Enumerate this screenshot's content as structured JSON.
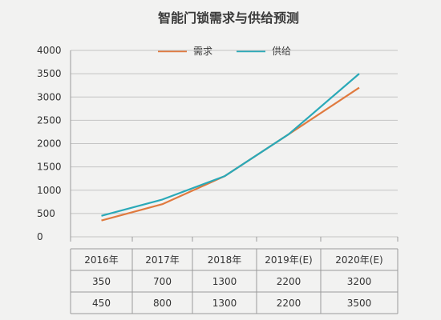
{
  "chart_data": {
    "type": "line",
    "title": "智能门锁需求与供给预测",
    "categories": [
      "2016年",
      "2017年",
      "2018年",
      "2019年(E)",
      "2020年(E)"
    ],
    "series": [
      {
        "name": "需求",
        "values": [
          350,
          700,
          1300,
          2200,
          3200
        ],
        "color": "#e07a3f"
      },
      {
        "name": "供给",
        "values": [
          450,
          800,
          1300,
          2200,
          3500
        ],
        "color": "#2aa9b8"
      }
    ],
    "yticks": [
      "4000",
      "3500",
      "3000",
      "2500",
      "2000",
      "1500",
      "1000",
      "500",
      "0"
    ],
    "ylim": [
      0,
      4000
    ],
    "grid": true,
    "legend_position": "top-center",
    "table": {
      "header": [
        "2016年",
        "2017年",
        "2018年",
        "2019年(E)",
        "2020年(E)"
      ],
      "rows": [
        [
          "350",
          "700",
          "1300",
          "2200",
          "3200"
        ],
        [
          "450",
          "800",
          "1300",
          "2200",
          "3500"
        ]
      ]
    }
  }
}
